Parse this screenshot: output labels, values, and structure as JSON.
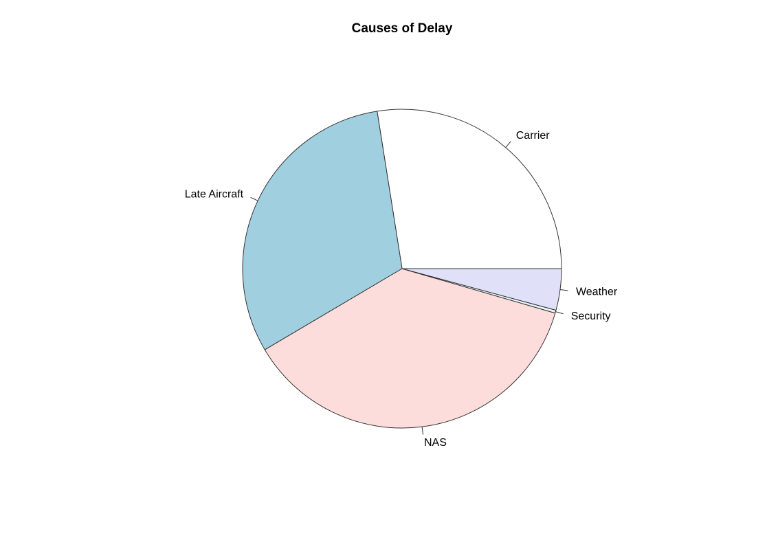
{
  "chart_data": {
    "type": "pie",
    "title": "Causes of Delay",
    "start_angle_deg": 0,
    "direction": "counterclockwise",
    "slices": [
      {
        "label": "Carrier",
        "value": 27.5,
        "color": "#ffffff"
      },
      {
        "label": "Late Aircraft",
        "value": 31.0,
        "color": "#a0cfe0"
      },
      {
        "label": "NAS",
        "value": 37.0,
        "color": "#fddddb"
      },
      {
        "label": "Security",
        "value": 0.3,
        "color": "#e8f4f8"
      },
      {
        "label": "Weather",
        "value": 4.2,
        "color": "#e0e0f8"
      }
    ]
  }
}
